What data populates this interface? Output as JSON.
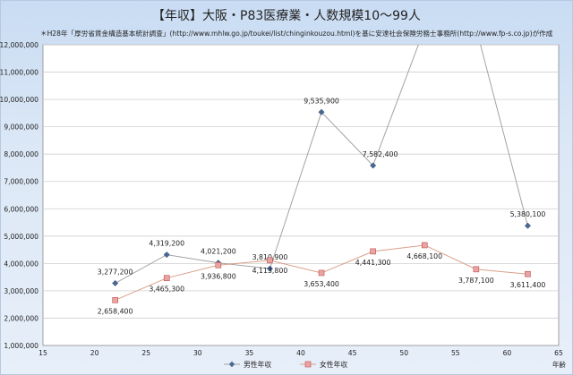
{
  "chart_data": {
    "type": "line",
    "title": "【年収】大阪・P83医療業・人数規模10～99人",
    "subtitle": "＊H28年「厚労省賃金構造基本統計調査」(http://www.mhlw.go.jp/toukei/list/chinginkouzou.html)を基に安達社会保険労務士事務所(http://www.fp-s.co.jp)が作成",
    "xlabel": "年齢",
    "ylabel": "",
    "xlim": [
      15,
      65
    ],
    "ylim": [
      1000000,
      12000000
    ],
    "x_ticks": [
      "15",
      "20",
      "25",
      "30",
      "35",
      "40",
      "45",
      "50",
      "55",
      "60",
      "65"
    ],
    "y_ticks": [
      "1,000,000",
      "2,000,000",
      "3,000,000",
      "4,000,000",
      "5,000,000",
      "6,000,000",
      "7,000,000",
      "8,000,000",
      "9,000,000",
      "10,000,000",
      "11,000,000",
      "12,000,000"
    ],
    "grid": "horizontal",
    "legend_position": "bottom",
    "series": [
      {
        "name": "男性年収",
        "color": "#4a6894",
        "line_color": "#a3a3a3",
        "marker": "diamond",
        "x": [
          22,
          27,
          32,
          37,
          42,
          47,
          52,
          57,
          62
        ],
        "values": [
          3277200,
          4319200,
          4021200,
          3810900,
          9535900,
          7582400,
          12600000,
          12600000,
          5380100
        ],
        "labels": [
          "3,277,200",
          "4,319,200",
          "4,021,200",
          "3,810,900",
          "9,535,900",
          "7,582,400",
          "",
          "",
          "5,380,100"
        ]
      },
      {
        "name": "女性年収",
        "color": "#e9a3a3",
        "line_color": "#d9a08a",
        "marker": "square",
        "x": [
          22,
          27,
          32,
          37,
          42,
          47,
          52,
          57,
          62
        ],
        "values": [
          2658400,
          3465300,
          3936800,
          4113800,
          3653400,
          4441300,
          4668100,
          3787100,
          3611400
        ],
        "labels": [
          "2,658,400",
          "3,465,300",
          "3,936,800",
          "4,113,800",
          "3,653,400",
          "4,441,300",
          "4,668,100",
          "3,787,100",
          "3,611,400"
        ]
      }
    ]
  }
}
